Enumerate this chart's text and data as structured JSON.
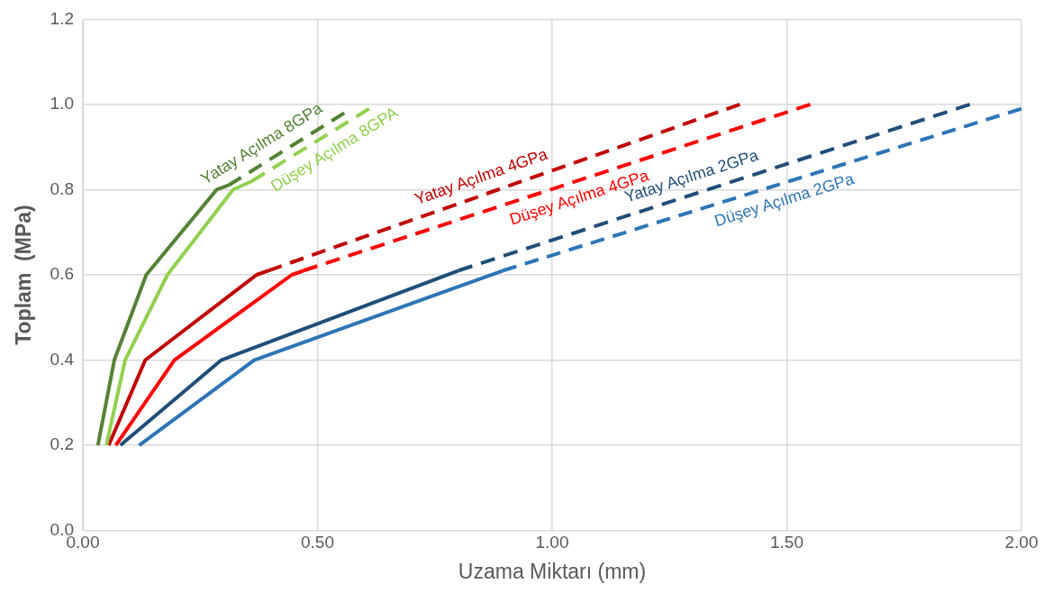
{
  "chart_data": {
    "type": "line",
    "xlabel": "Uzama Miktarı (mm)",
    "ylabel": "Toplam  (MPa)",
    "xlim": [
      0,
      2
    ],
    "xticks": [
      {
        "value": 0,
        "label": "0.00"
      },
      {
        "value": 0.5,
        "label": "0.50"
      },
      {
        "value": 1,
        "label": "1.00"
      },
      {
        "value": 1.5,
        "label": "1.50"
      },
      {
        "value": 2,
        "label": "2.00"
      }
    ],
    "ylim": [
      0,
      1.2
    ],
    "yticks": [
      {
        "value": 0,
        "label": "0.0"
      },
      {
        "value": 0.2,
        "label": "0.2"
      },
      {
        "value": 0.4,
        "label": "0.4"
      },
      {
        "value": 0.6,
        "label": "0.6"
      },
      {
        "value": 0.8,
        "label": "0.8"
      },
      {
        "value": 1,
        "label": "1.0"
      },
      {
        "value": 1.2,
        "label": "1.2"
      }
    ],
    "grid": true,
    "legend": false,
    "marker": "none",
    "series": [
      {
        "name": "Yatay Açılma 8GPa",
        "color": "#548235",
        "line_style": "solid",
        "x": [
          0.032,
          0.067,
          0.135,
          0.285,
          0.31
        ],
        "values": [
          0.2,
          0.4,
          0.6,
          0.8,
          0.81
        ]
      },
      {
        "color": "#548235",
        "line_style": "dashed",
        "x": [
          0.31,
          0.557
        ],
        "values": [
          0.81,
          0.98
        ]
      },
      {
        "name": "Düşey Açılma 8GPA",
        "color": "#92d050",
        "line_style": "solid",
        "x": [
          0.05,
          0.09,
          0.18,
          0.32,
          0.36
        ],
        "values": [
          0.2,
          0.4,
          0.6,
          0.8,
          0.82
        ]
      },
      {
        "color": "#92d050",
        "line_style": "dashed",
        "x": [
          0.36,
          0.61
        ],
        "values": [
          0.82,
          0.99
        ]
      },
      {
        "name": "Yatay Açılma 4GPa",
        "color": "#c00000",
        "line_style": "solid",
        "x": [
          0.055,
          0.133,
          0.37,
          0.395
        ],
        "values": [
          0.2,
          0.4,
          0.6,
          0.61
        ]
      },
      {
        "color": "#c00000",
        "line_style": "dashed",
        "x": [
          0.395,
          1.4
        ],
        "values": [
          0.61,
          1.0
        ]
      },
      {
        "name": "Düşey Açılma 4GPa",
        "color": "#ff0000",
        "line_style": "solid",
        "x": [
          0.07,
          0.195,
          0.445,
          0.47
        ],
        "values": [
          0.2,
          0.4,
          0.6,
          0.61
        ]
      },
      {
        "color": "#ff0000",
        "line_style": "dashed",
        "x": [
          0.47,
          1.55
        ],
        "values": [
          0.61,
          1.0
        ]
      },
      {
        "name": "Yatay Açılma 2GPa",
        "color": "#1f4e79",
        "line_style": "solid",
        "x": [
          0.08,
          0.295,
          0.8
        ],
        "values": [
          0.2,
          0.4,
          0.61
        ]
      },
      {
        "color": "#1f4e79",
        "line_style": "dashed",
        "x": [
          0.8,
          1.89
        ],
        "values": [
          0.61,
          1.0
        ]
      },
      {
        "name": "Düşey Açılma 2GPa",
        "color": "#2e75b6",
        "line_style": "solid",
        "x": [
          0.12,
          0.365,
          0.895
        ],
        "values": [
          0.2,
          0.4,
          0.61
        ]
      },
      {
        "color": "#2e75b6",
        "line_style": "dashed",
        "x": [
          0.895,
          2.0
        ],
        "values": [
          0.61,
          0.99
        ]
      }
    ]
  }
}
